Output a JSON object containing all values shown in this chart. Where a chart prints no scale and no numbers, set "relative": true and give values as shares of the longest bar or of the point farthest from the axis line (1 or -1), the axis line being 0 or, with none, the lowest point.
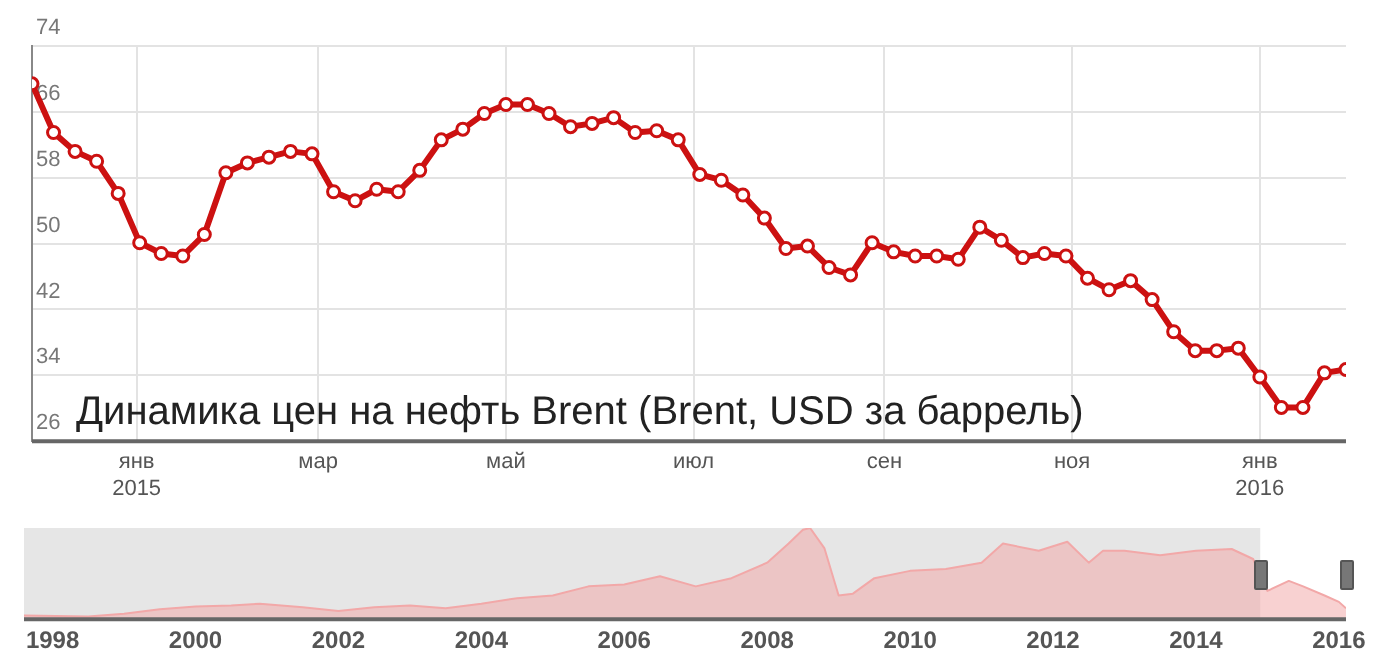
{
  "chart_data": [
    {
      "type": "line",
      "title": "Динамика цен на нефть Brent (Brent, USD за баррель)",
      "x": [
        "2014-11-28",
        "2014-12-05",
        "2014-12-12",
        "2014-12-19",
        "2014-12-26",
        "2015-01-02",
        "2015-01-09",
        "2015-01-16",
        "2015-01-23",
        "2015-01-30",
        "2015-02-06",
        "2015-02-13",
        "2015-02-20",
        "2015-02-27",
        "2015-03-06",
        "2015-03-13",
        "2015-03-20",
        "2015-03-27",
        "2015-04-03",
        "2015-04-10",
        "2015-04-17",
        "2015-04-24",
        "2015-05-01",
        "2015-05-08",
        "2015-05-15",
        "2015-05-22",
        "2015-05-29",
        "2015-06-05",
        "2015-06-12",
        "2015-06-19",
        "2015-06-26",
        "2015-07-03",
        "2015-07-10",
        "2015-07-17",
        "2015-07-24",
        "2015-07-31",
        "2015-08-07",
        "2015-08-14",
        "2015-08-21",
        "2015-08-28",
        "2015-09-04",
        "2015-09-11",
        "2015-09-18",
        "2015-09-25",
        "2015-10-02",
        "2015-10-09",
        "2015-10-16",
        "2015-10-23",
        "2015-10-30",
        "2015-11-06",
        "2015-11-13",
        "2015-11-20",
        "2015-11-27",
        "2015-12-04",
        "2015-12-11",
        "2015-12-18",
        "2015-12-25",
        "2016-01-01",
        "2016-01-08",
        "2016-01-15",
        "2016-01-22",
        "2016-01-29"
      ],
      "series": [
        {
          "color": "#cc1111",
          "values": [
            69.4,
            63.5,
            61.2,
            60.0,
            56.1,
            50.1,
            48.8,
            48.5,
            51.1,
            58.6,
            59.8,
            60.5,
            61.2,
            60.9,
            56.3,
            55.2,
            56.6,
            56.3,
            58.9,
            62.6,
            63.9,
            65.8,
            66.9,
            66.9,
            65.8,
            64.2,
            64.6,
            65.3,
            63.5,
            63.7,
            62.6,
            58.4,
            57.7,
            55.9,
            53.1,
            49.4,
            49.7,
            47.1,
            46.2,
            50.1,
            49.0,
            48.5,
            48.5,
            48.1,
            52.0,
            50.4,
            48.3,
            48.8,
            48.5,
            45.8,
            44.4,
            45.5,
            43.2,
            39.3,
            37.0,
            37.0,
            37.3,
            33.8,
            30.1,
            30.1,
            34.3,
            34.7
          ]
        }
      ],
      "xlim": [
        "2014-11-28",
        "2016-01-29"
      ],
      "xticks": [
        {
          "value": "2015-01-01",
          "label": "янв 2015"
        },
        {
          "value": "2015-03-01",
          "label": "мар"
        },
        {
          "value": "2015-05-01",
          "label": "май"
        },
        {
          "value": "2015-07-01",
          "label": "июл"
        },
        {
          "value": "2015-09-01",
          "label": "сен"
        },
        {
          "value": "2015-11-01",
          "label": "ноя"
        },
        {
          "value": "2016-01-01",
          "label": "янв 2016"
        }
      ],
      "ylim": [
        26,
        74
      ],
      "yticks": [
        26,
        34,
        42,
        50,
        58,
        66,
        74
      ],
      "grid": true,
      "legend": false,
      "marker": "circle",
      "line_style": "solid"
    },
    {
      "type": "area",
      "relative": true,
      "x": [
        1997.6,
        1998.5,
        1999.0,
        1999.5,
        2000.0,
        2000.5,
        2000.9,
        2001.5,
        2002.0,
        2002.5,
        2003.0,
        2003.5,
        2004.0,
        2004.5,
        2005.0,
        2005.5,
        2006.0,
        2006.5,
        2007.0,
        2007.5,
        2008.0,
        2008.3,
        2008.5,
        2008.6,
        2008.8,
        2009.0,
        2009.2,
        2009.5,
        2010.0,
        2010.5,
        2011.0,
        2011.3,
        2011.8,
        2012.2,
        2012.5,
        2012.7,
        2013.0,
        2013.5,
        2014.0,
        2014.5,
        2014.8,
        2015.0,
        2015.3,
        2015.5,
        2015.8,
        2016.0,
        2016.1
      ],
      "series": [
        {
          "color": "#f2a8a8",
          "values": [
            0.04,
            0.03,
            0.06,
            0.11,
            0.14,
            0.15,
            0.17,
            0.13,
            0.09,
            0.13,
            0.15,
            0.12,
            0.17,
            0.23,
            0.26,
            0.36,
            0.38,
            0.47,
            0.36,
            0.45,
            0.62,
            0.83,
            0.98,
            1,
            0.78,
            0.26,
            0.28,
            0.45,
            0.53,
            0.55,
            0.62,
            0.83,
            0.75,
            0.85,
            0.62,
            0.75,
            0.75,
            0.7,
            0.75,
            0.77,
            0.66,
            0.31,
            0.42,
            0.36,
            0.26,
            0.19,
            0.12
          ]
        }
      ],
      "xlim": [
        1997.6,
        2016.1
      ],
      "xticks": [
        1998,
        2000,
        2002,
        2004,
        2006,
        2008,
        2010,
        2012,
        2014,
        2016
      ],
      "bands": [
        {
          "axis": "x",
          "from": 1997.6,
          "to": 2014.9,
          "color": "#e6e6e6"
        }
      ],
      "tick_labels": "x",
      "grid": false,
      "legend": false
    }
  ]
}
